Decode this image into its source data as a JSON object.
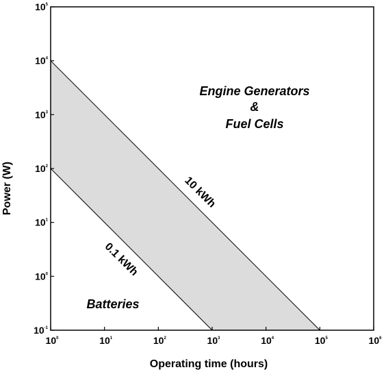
{
  "chart_data": {
    "type": "line",
    "xlabel": "Operating time (hours)",
    "ylabel": "Power (W)",
    "x_scale": "log",
    "y_scale": "log",
    "xlim": [
      1,
      1000000
    ],
    "ylim": [
      0.1,
      100000
    ],
    "grid": false,
    "x_ticks": [
      {
        "base": "10",
        "exp": "0",
        "value": 1
      },
      {
        "base": "10",
        "exp": "1",
        "value": 10
      },
      {
        "base": "10",
        "exp": "2",
        "value": 100
      },
      {
        "base": "10",
        "exp": "3",
        "value": 1000
      },
      {
        "base": "10",
        "exp": "4",
        "value": 10000
      },
      {
        "base": "10",
        "exp": "5",
        "value": 100000
      },
      {
        "base": "10",
        "exp": "6",
        "value": 1000000
      }
    ],
    "y_ticks": [
      {
        "base": "10",
        "exp": "-1",
        "value": 0.1
      },
      {
        "base": "10",
        "exp": "0",
        "value": 1
      },
      {
        "base": "10",
        "exp": "1",
        "value": 10
      },
      {
        "base": "10",
        "exp": "2",
        "value": 100
      },
      {
        "base": "10",
        "exp": "3",
        "value": 1000
      },
      {
        "base": "10",
        "exp": "4",
        "value": 10000
      },
      {
        "base": "10",
        "exp": "5",
        "value": 100000
      }
    ],
    "series": [
      {
        "name": "10 kWh",
        "x": [
          1,
          100000
        ],
        "y": [
          10000,
          0.1
        ]
      },
      {
        "name": "0.1 kWh",
        "x": [
          1,
          1000
        ],
        "y": [
          100,
          0.1
        ]
      }
    ],
    "band_fill_color": "#dcdcdc",
    "annotations": [
      {
        "text": "Engine Generators",
        "x": 2000,
        "y": 3000
      },
      {
        "text": "&",
        "x": 2000,
        "y": 1400
      },
      {
        "text": "Fuel Cells",
        "x": 2000,
        "y": 700
      },
      {
        "text": "10 kWh",
        "x": 300,
        "y": 35
      },
      {
        "text": "0.1 kWh",
        "x": 8,
        "y": 4
      },
      {
        "text": "Batteries",
        "x": 12,
        "y": 0.45
      }
    ]
  }
}
